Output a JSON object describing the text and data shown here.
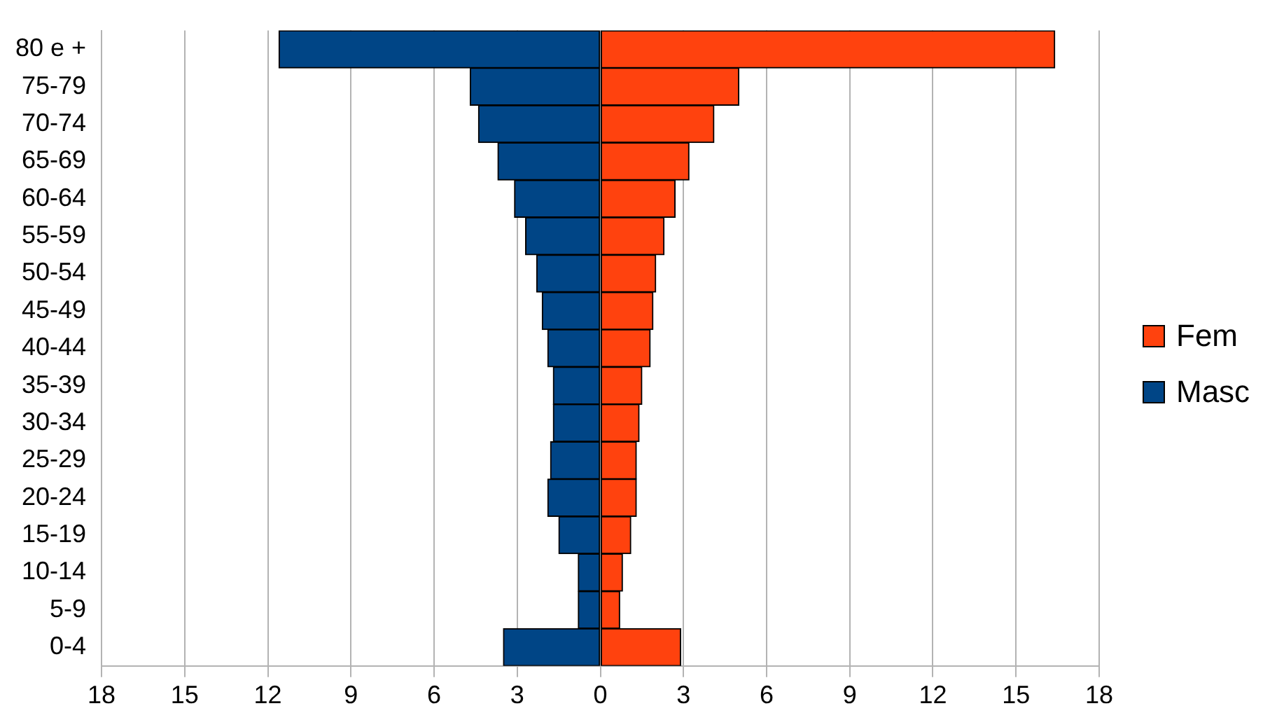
{
  "chart_data": {
    "type": "bar",
    "orientation": "horizontal",
    "stacked": true,
    "categories": [
      "80 e +",
      "75-79",
      "70-74",
      "65-69",
      "60-64",
      "55-59",
      "50-54",
      "45-49",
      "40-44",
      "35-39",
      "30-34",
      "25-29",
      "20-24",
      "15-19",
      "10-14",
      "5-9",
      "0-4"
    ],
    "series": [
      {
        "name": "Fem",
        "color": "#ff420e",
        "values": [
          16.4,
          5.0,
          4.1,
          3.2,
          2.7,
          2.3,
          2.0,
          1.9,
          1.8,
          1.5,
          1.4,
          1.3,
          1.3,
          1.1,
          0.8,
          0.7,
          2.9
        ]
      },
      {
        "name": "Masc",
        "color": "#004586",
        "values": [
          -11.6,
          -4.7,
          -4.4,
          -3.7,
          -3.1,
          -2.7,
          -2.3,
          -2.1,
          -1.9,
          -1.7,
          -1.7,
          -1.8,
          -1.9,
          -1.5,
          -0.8,
          -0.8,
          -3.5
        ]
      }
    ],
    "xlim": [
      -18,
      18
    ],
    "xticks": [
      {
        "value": -18,
        "label": "18"
      },
      {
        "value": -15,
        "label": "15"
      },
      {
        "value": -12,
        "label": "12"
      },
      {
        "value": -9,
        "label": "9"
      },
      {
        "value": -6,
        "label": "6"
      },
      {
        "value": -3,
        "label": "3"
      },
      0,
      3,
      6,
      9,
      12,
      15,
      18
    ],
    "grid": "x",
    "legend": "right"
  }
}
